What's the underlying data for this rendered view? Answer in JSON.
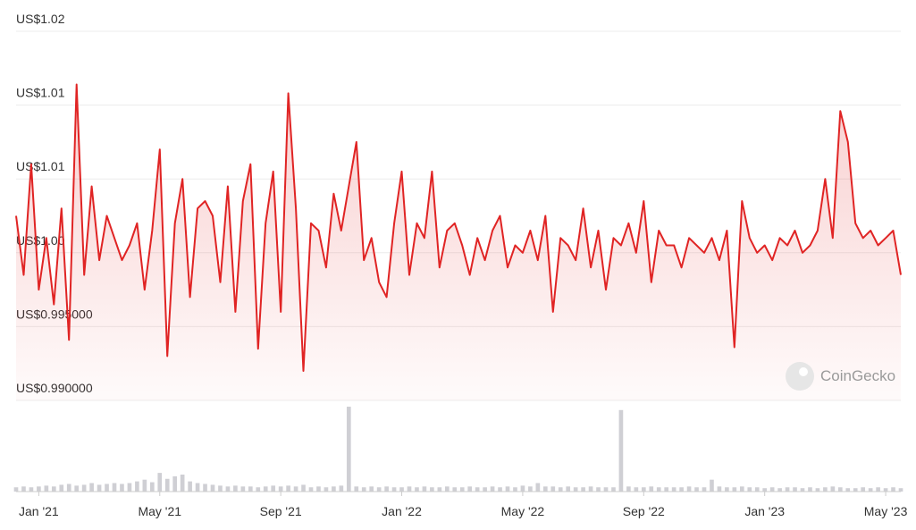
{
  "chart_data": [
    {
      "type": "line",
      "watermark": "CoinGecko",
      "categories": [
        null,
        null,
        null,
        "Jan '21",
        null,
        null,
        null,
        null,
        null,
        null,
        null,
        null,
        null,
        null,
        null,
        null,
        null,
        null,
        null,
        "May '21",
        null,
        null,
        null,
        null,
        null,
        null,
        null,
        null,
        null,
        null,
        null,
        null,
        null,
        null,
        null,
        "Sep '21",
        null,
        null,
        null,
        null,
        null,
        null,
        null,
        null,
        null,
        null,
        null,
        null,
        null,
        null,
        null,
        "Jan '22",
        null,
        null,
        null,
        null,
        null,
        null,
        null,
        null,
        null,
        null,
        null,
        null,
        null,
        null,
        null,
        "May '22",
        null,
        null,
        null,
        null,
        null,
        null,
        null,
        null,
        null,
        null,
        null,
        null,
        null,
        null,
        null,
        "Sep '22",
        null,
        null,
        null,
        null,
        null,
        null,
        null,
        null,
        null,
        null,
        null,
        null,
        null,
        null,
        null,
        "Jan '23",
        null,
        null,
        null,
        null,
        null,
        null,
        null,
        null,
        null,
        null,
        null,
        null,
        null,
        null,
        null,
        "May '23",
        null,
        null
      ],
      "values": [
        1.0025,
        0.9985,
        1.006,
        0.9975,
        1.001,
        0.9965,
        1.003,
        0.9941,
        1.0114,
        0.9985,
        1.0045,
        0.9995,
        1.0025,
        1.001,
        0.9995,
        1.0005,
        1.002,
        0.9975,
        1.0015,
        1.007,
        0.993,
        1.002,
        1.005,
        0.997,
        1.003,
        1.0035,
        1.0025,
        0.998,
        1.0045,
        0.996,
        1.0035,
        1.006,
        0.9935,
        1.002,
        1.0055,
        0.996,
        1.0108,
        1.003,
        0.992,
        1.002,
        1.0015,
        0.999,
        1.004,
        1.0015,
        1.0045,
        1.0075,
        0.9995,
        1.001,
        0.998,
        0.997,
        1.002,
        1.0055,
        0.9985,
        1.002,
        1.001,
        1.0055,
        0.999,
        1.0015,
        1.002,
        1.0005,
        0.9985,
        1.001,
        0.9995,
        1.0015,
        1.0025,
        0.999,
        1.0005,
        1.0,
        1.0015,
        0.9995,
        1.0025,
        0.996,
        1.001,
        1.0005,
        0.9995,
        1.003,
        0.999,
        1.0015,
        0.9975,
        1.001,
        1.0005,
        1.002,
        1.0,
        1.0035,
        0.998,
        1.0015,
        1.0005,
        1.0005,
        0.999,
        1.001,
        1.0005,
        1.0,
        1.001,
        0.9995,
        1.0015,
        0.9936,
        1.0035,
        1.001,
        1.0,
        1.0005,
        0.9995,
        1.001,
        1.0005,
        1.0015,
        1.0,
        1.0005,
        1.0015,
        1.005,
        1.001,
        1.0096,
        1.0075,
        1.002,
        1.001,
        1.0015,
        1.0005,
        1.001,
        1.0015,
        0.9985
      ],
      "color": "#e02424",
      "ylim": [
        0.99,
        1.015
      ],
      "yticks": [
        {
          "value": 0.99,
          "label": "US$0.990000"
        },
        {
          "value": 0.995,
          "label": "US$0.995000"
        },
        {
          "value": 1.0,
          "label": "US$1.00"
        },
        {
          "value": 1.005,
          "label": "US$1.01"
        },
        {
          "value": 1.01,
          "label": "US$1.01"
        },
        {
          "value": 1.015,
          "label": "US$1.02"
        }
      ],
      "grid": true
    },
    {
      "type": "bar",
      "values": [
        5,
        6,
        5,
        6,
        7,
        6,
        8,
        9,
        7,
        8,
        10,
        8,
        9,
        10,
        9,
        10,
        12,
        14,
        11,
        22,
        15,
        18,
        20,
        12,
        10,
        9,
        8,
        7,
        6,
        7,
        6,
        6,
        5,
        6,
        7,
        6,
        7,
        6,
        8,
        5,
        6,
        5,
        6,
        7,
        100,
        6,
        5,
        6,
        5,
        6,
        5,
        5,
        6,
        5,
        6,
        5,
        5,
        6,
        5,
        5,
        6,
        5,
        5,
        6,
        5,
        6,
        5,
        7,
        6,
        10,
        6,
        6,
        5,
        6,
        5,
        5,
        6,
        5,
        5,
        5,
        96,
        6,
        5,
        5,
        6,
        5,
        5,
        5,
        5,
        6,
        5,
        5,
        14,
        6,
        5,
        5,
        6,
        5,
        5,
        4,
        5,
        4,
        5,
        5,
        4,
        5,
        4,
        5,
        6,
        5,
        4,
        4,
        5,
        4,
        5,
        4,
        5,
        4
      ],
      "color": "#cfcfd4",
      "ylim": [
        0,
        100
      ]
    }
  ]
}
